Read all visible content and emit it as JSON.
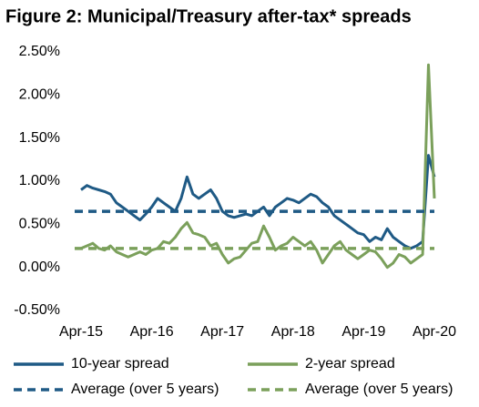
{
  "chart_data": {
    "type": "line",
    "title": "Figure 2: Municipal/Treasury after-tax* spreads",
    "x": [
      "Apr-15",
      "May-15",
      "Jun-15",
      "Jul-15",
      "Aug-15",
      "Sep-15",
      "Oct-15",
      "Nov-15",
      "Dec-15",
      "Jan-16",
      "Feb-16",
      "Mar-16",
      "Apr-16",
      "May-16",
      "Jun-16",
      "Jul-16",
      "Aug-16",
      "Sep-16",
      "Oct-16",
      "Nov-16",
      "Dec-16",
      "Jan-17",
      "Feb-17",
      "Mar-17",
      "Apr-17",
      "May-17",
      "Jun-17",
      "Jul-17",
      "Aug-17",
      "Sep-17",
      "Oct-17",
      "Nov-17",
      "Dec-17",
      "Jan-18",
      "Feb-18",
      "Mar-18",
      "Apr-18",
      "May-18",
      "Jun-18",
      "Jul-18",
      "Aug-18",
      "Sep-18",
      "Oct-18",
      "Nov-18",
      "Dec-18",
      "Jan-19",
      "Feb-19",
      "Mar-19",
      "Apr-19",
      "May-19",
      "Jun-19",
      "Jul-19",
      "Aug-19",
      "Sep-19",
      "Oct-19",
      "Nov-19",
      "Dec-19",
      "Jan-20",
      "Feb-20",
      "Mar-20",
      "Apr-20"
    ],
    "xticks": [
      "Apr-15",
      "Apr-16",
      "Apr-17",
      "Apr-18",
      "Apr-19",
      "Apr-20"
    ],
    "ylim": [
      -0.5,
      2.5
    ],
    "yticks": [
      {
        "value": -0.5,
        "label": "-0.50%"
      },
      {
        "value": 0,
        "label": "0.00%"
      },
      {
        "value": 0.5,
        "label": "0.50%"
      },
      {
        "value": 1,
        "label": "1.00%"
      },
      {
        "value": 1.5,
        "label": "1.50%"
      },
      {
        "value": 2,
        "label": "2.00%"
      },
      {
        "value": 2.5,
        "label": "2.50%"
      }
    ],
    "grid": false,
    "series": [
      {
        "name": "10-year spread",
        "color": "#1f5a85",
        "values": [
          0.9,
          0.95,
          0.92,
          0.9,
          0.88,
          0.85,
          0.75,
          0.7,
          0.65,
          0.6,
          0.55,
          0.62,
          0.7,
          0.8,
          0.75,
          0.7,
          0.65,
          0.8,
          1.05,
          0.85,
          0.8,
          0.85,
          0.9,
          0.8,
          0.65,
          0.6,
          0.58,
          0.6,
          0.62,
          0.6,
          0.65,
          0.7,
          0.6,
          0.7,
          0.75,
          0.8,
          0.78,
          0.75,
          0.8,
          0.85,
          0.82,
          0.75,
          0.7,
          0.6,
          0.55,
          0.5,
          0.45,
          0.4,
          0.38,
          0.3,
          0.35,
          0.32,
          0.45,
          0.35,
          0.3,
          0.25,
          0.22,
          0.25,
          0.3,
          1.3,
          1.05
        ]
      },
      {
        "name": "2-year spread",
        "color": "#7ba05b",
        "values": [
          0.22,
          0.25,
          0.28,
          0.22,
          0.2,
          0.25,
          0.18,
          0.15,
          0.12,
          0.15,
          0.18,
          0.15,
          0.2,
          0.22,
          0.3,
          0.28,
          0.35,
          0.45,
          0.52,
          0.4,
          0.38,
          0.35,
          0.25,
          0.28,
          0.15,
          0.05,
          0.1,
          0.12,
          0.2,
          0.28,
          0.3,
          0.48,
          0.35,
          0.2,
          0.25,
          0.28,
          0.35,
          0.3,
          0.25,
          0.3,
          0.2,
          0.05,
          0.15,
          0.25,
          0.3,
          0.2,
          0.15,
          0.1,
          0.15,
          0.2,
          0.18,
          0.1,
          0.0,
          0.05,
          0.15,
          0.12,
          0.05,
          0.1,
          0.15,
          2.35,
          0.8
        ]
      },
      {
        "name": "Average (over 5 years)",
        "color": "#1f5a85",
        "dashed": true,
        "value": 0.65
      },
      {
        "name": "Average (over 5 years)",
        "color": "#7ba05b",
        "dashed": true,
        "value": 0.22
      }
    ]
  }
}
